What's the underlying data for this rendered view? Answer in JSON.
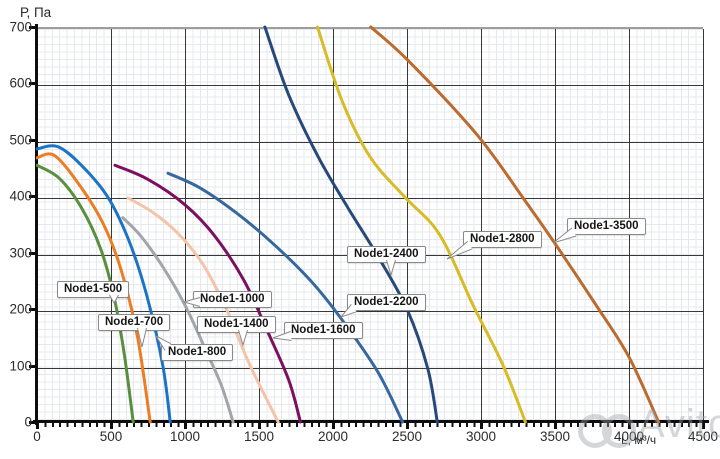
{
  "watermark": {
    "text": "Avito"
  },
  "chart_data": {
    "type": "line",
    "title": "",
    "xlabel": "L, м³/ч",
    "ylabel": "Р, Па",
    "xlim": [
      0,
      4500
    ],
    "ylim": [
      0,
      700
    ],
    "x_ticks": [
      0,
      500,
      1000,
      1500,
      2000,
      2500,
      3000,
      3500,
      4000,
      4500
    ],
    "y_ticks": [
      0,
      100,
      200,
      300,
      400,
      500,
      600,
      700
    ],
    "grid": {
      "major_x_step": 500,
      "major_y_step": 100,
      "minor": "fine mesh"
    },
    "legend_position": "inline callout labels on curves",
    "series": [
      {
        "name": "Node1-500",
        "color": "#5a8f3d",
        "points": [
          [
            0,
            455
          ],
          [
            150,
            432
          ],
          [
            300,
            380
          ],
          [
            430,
            307
          ],
          [
            520,
            222
          ],
          [
            590,
            120
          ],
          [
            650,
            0
          ]
        ],
        "label": {
          "box_x": 57,
          "box_y": 281,
          "tip_x": 114,
          "tip_y": 303
        }
      },
      {
        "name": "Node1-700",
        "color": "#ed7d23",
        "points": [
          [
            0,
            468
          ],
          [
            120,
            472
          ],
          [
            300,
            415
          ],
          [
            450,
            350
          ],
          [
            570,
            268
          ],
          [
            680,
            150
          ],
          [
            765,
            0
          ]
        ],
        "label": {
          "box_x": 98,
          "box_y": 314,
          "tip_x": 142,
          "tip_y": 347
        }
      },
      {
        "name": "Node1-800",
        "color": "#1b74c5",
        "points": [
          [
            0,
            484
          ],
          [
            140,
            488
          ],
          [
            300,
            455
          ],
          [
            480,
            398
          ],
          [
            620,
            322
          ],
          [
            740,
            226
          ],
          [
            850,
            100
          ],
          [
            900,
            0
          ]
        ],
        "label": {
          "box_x": 161,
          "box_y": 344,
          "tip_x": 156,
          "tip_y": 336
        }
      },
      {
        "name": "Node1-1000",
        "color": "#a2a6aa",
        "points": [
          [
            580,
            362
          ],
          [
            700,
            330
          ],
          [
            850,
            275
          ],
          [
            1000,
            207
          ],
          [
            1150,
            122
          ],
          [
            1250,
            62
          ],
          [
            1325,
            0
          ]
        ],
        "label": {
          "box_x": 193,
          "box_y": 291,
          "tip_x": 184,
          "tip_y": 302
        }
      },
      {
        "name": "Node1-1400",
        "color": "#f4c4a8",
        "points": [
          [
            615,
            397
          ],
          [
            780,
            372
          ],
          [
            950,
            335
          ],
          [
            1120,
            280
          ],
          [
            1280,
            200
          ],
          [
            1440,
            100
          ],
          [
            1630,
            0
          ]
        ],
        "label": {
          "box_x": 197,
          "box_y": 316,
          "tip_x": 243,
          "tip_y": 345
        }
      },
      {
        "name": "Node1-1600",
        "color": "#7b1060",
        "points": [
          [
            527,
            455
          ],
          [
            750,
            430
          ],
          [
            1000,
            385
          ],
          [
            1200,
            330
          ],
          [
            1400,
            250
          ],
          [
            1550,
            165
          ],
          [
            1700,
            75
          ],
          [
            1780,
            0
          ]
        ],
        "label": {
          "box_x": 284,
          "box_y": 322,
          "tip_x": 273,
          "tip_y": 338
        }
      },
      {
        "name": "Node1-2200",
        "color": "#36689f",
        "points": [
          [
            885,
            441
          ],
          [
            1100,
            415
          ],
          [
            1350,
            370
          ],
          [
            1600,
            315
          ],
          [
            1850,
            250
          ],
          [
            2050,
            185
          ],
          [
            2300,
            90
          ],
          [
            2470,
            0
          ]
        ],
        "label": {
          "box_x": 347,
          "box_y": 294,
          "tip_x": 341,
          "tip_y": 317
        }
      },
      {
        "name": "Node1-2400",
        "color": "#27497a",
        "points": [
          [
            1540,
            700
          ],
          [
            1700,
            580
          ],
          [
            1900,
            470
          ],
          [
            2100,
            380
          ],
          [
            2300,
            295
          ],
          [
            2500,
            200
          ],
          [
            2640,
            95
          ],
          [
            2705,
            0
          ]
        ],
        "label": {
          "box_x": 347,
          "box_y": 246,
          "tip_x": 391,
          "tip_y": 275
        }
      },
      {
        "name": "Node1-2800",
        "color": "#d8bc25",
        "points": [
          [
            1895,
            700
          ],
          [
            2060,
            570
          ],
          [
            2250,
            470
          ],
          [
            2480,
            400
          ],
          [
            2720,
            332
          ],
          [
            2950,
            205
          ],
          [
            3150,
            100
          ],
          [
            3300,
            0
          ]
        ],
        "label": {
          "box_x": 463,
          "box_y": 231,
          "tip_x": 447,
          "tip_y": 259
        }
      },
      {
        "name": "Node1-3500",
        "color": "#bb6b2e",
        "points": [
          [
            2255,
            700
          ],
          [
            2510,
            640
          ],
          [
            2970,
            510
          ],
          [
            3290,
            395
          ],
          [
            3490,
            320
          ],
          [
            3770,
            210
          ],
          [
            4000,
            115
          ],
          [
            4200,
            0
          ]
        ],
        "label": {
          "box_x": 567,
          "box_y": 218,
          "tip_x": 553,
          "tip_y": 243
        }
      }
    ]
  }
}
